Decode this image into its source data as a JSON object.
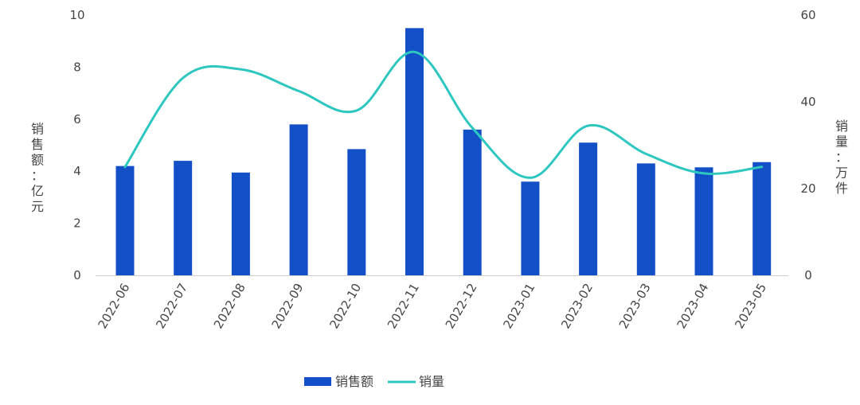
{
  "chart_data": {
    "type": "bar+line",
    "categories": [
      "2022-06",
      "2022-07",
      "2022-08",
      "2022-09",
      "2022-10",
      "2022-11",
      "2022-12",
      "2023-01",
      "2023-02",
      "2023-03",
      "2023-04",
      "2023-05"
    ],
    "series": [
      {
        "name": "销售额",
        "type": "bar",
        "axis": "left",
        "color": "#1350C8",
        "values": [
          4.2,
          4.4,
          3.95,
          5.8,
          4.85,
          9.5,
          5.6,
          3.6,
          5.1,
          4.3,
          4.15,
          4.35
        ]
      },
      {
        "name": "销量",
        "type": "line",
        "smooth": true,
        "axis": "right",
        "color": "#2EC7C0",
        "values": [
          25,
          45.5,
          47.5,
          42.5,
          38,
          51.5,
          34,
          22.5,
          34.5,
          28,
          23.5,
          25
        ]
      }
    ],
    "ylabel_left": "销售额：亿元",
    "ylabel_right": "销量：万件",
    "ylim_left": [
      0,
      10
    ],
    "ylim_right": [
      0,
      60
    ],
    "yticks_left": [
      0,
      2,
      4,
      6,
      8,
      10
    ],
    "yticks_right": [
      0,
      20,
      40,
      60
    ],
    "grid": false,
    "legend_position": "bottom-center",
    "axis_color": "#CCCCCC",
    "text_color": "#444444"
  }
}
